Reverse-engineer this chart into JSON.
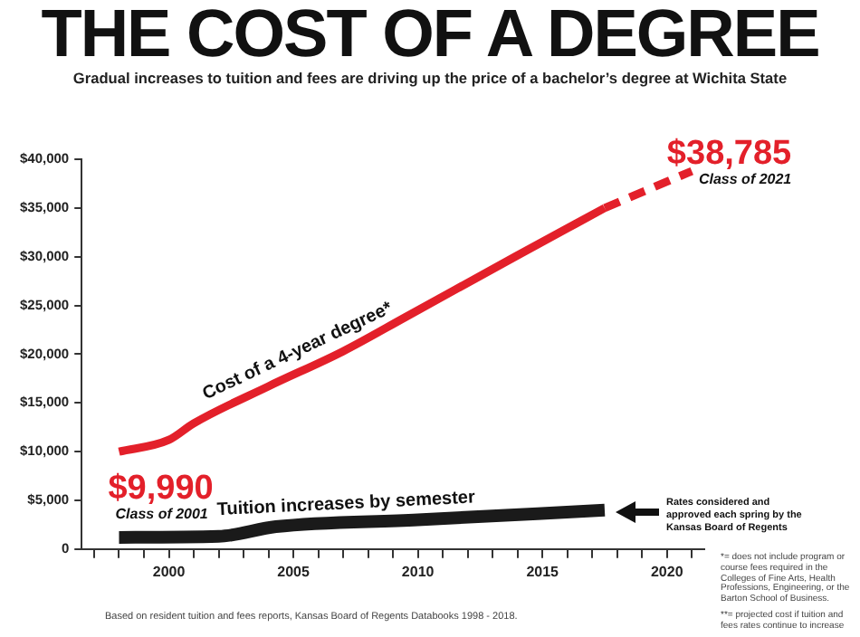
{
  "chart_data": {
    "type": "line",
    "title": "THE COST OF A DEGREE",
    "subtitle": "Gradual increases to tuition and fees are driving up the price of a bachelor’s degree at Wichita State",
    "series": [
      {
        "name": "Cost of a 4-year degree*",
        "color": "#e3202a",
        "x": [
          1998,
          2000,
          2001,
          2004,
          2007,
          2009.5,
          2013.9,
          2017.5
        ],
        "values": [
          9990,
          11200,
          12900,
          16700,
          20300,
          23800,
          30000,
          35000
        ]
      },
      {
        "color": "#e3202a",
        "line_style": "dashed",
        "x": [
          2017.5,
          2021
        ],
        "values": [
          35000,
          38785
        ]
      },
      {
        "name": "Tuition increases by semester",
        "color": "#1a1a1a",
        "x": [
          1998,
          2002,
          2004.3,
          2010,
          2017.5
        ],
        "values": [
          1200,
          1300,
          2300,
          3000,
          4000
        ]
      }
    ],
    "xlim": [
      1996.5,
      2021.5
    ],
    "xticks": [
      {
        "value": 1997,
        "label": null
      },
      {
        "value": 1998,
        "label": null
      },
      {
        "value": 1999,
        "label": null
      },
      2000,
      {
        "value": 2001,
        "label": null
      },
      {
        "value": 2002,
        "label": null
      },
      {
        "value": 2003,
        "label": null
      },
      {
        "value": 2004,
        "label": null
      },
      2005,
      {
        "value": 2006,
        "label": null
      },
      {
        "value": 2007,
        "label": null
      },
      {
        "value": 2008,
        "label": null
      },
      {
        "value": 2009,
        "label": null
      },
      2010,
      {
        "value": 2011,
        "label": null
      },
      {
        "value": 2012,
        "label": null
      },
      {
        "value": 2013,
        "label": null
      },
      {
        "value": 2014,
        "label": null
      },
      2015,
      {
        "value": 2016,
        "label": null
      },
      {
        "value": 2017,
        "label": null
      },
      {
        "value": 2018,
        "label": null
      },
      {
        "value": 2019,
        "label": null
      },
      2020,
      {
        "value": 2021,
        "label": null
      }
    ],
    "ylim": [
      0,
      40000
    ],
    "yticks": [
      0,
      {
        "value": 5000,
        "label": "$5,000"
      },
      {
        "value": 10000,
        "label": "$10,000"
      },
      {
        "value": 15000,
        "label": "$15,000"
      },
      {
        "value": 20000,
        "label": "$20,000"
      },
      {
        "value": 25000,
        "label": "$25,000"
      },
      {
        "value": 30000,
        "label": "$30,000"
      },
      {
        "value": 35000,
        "label": "$35,000"
      },
      {
        "value": 40000,
        "label": "$40,000"
      }
    ],
    "grid": false,
    "legend": false,
    "marker": "none",
    "line_style": "solid",
    "annotations": [
      {
        "text": "$9,990",
        "x": 1998,
        "y": 9990
      },
      "Class of 2001",
      {
        "text": "$38,785",
        "x": 2021,
        "y": 38785
      },
      "Class of 2021",
      "Rates considered and approved each spring by the Kansas Board of Regents",
      "Based on resident tuition and fees reports, Kansas Board of Regents Databooks 1998 - 2018.",
      "*= does not include program or course fees required in the Colleges of Fine Arts, Health Professions, Engineering, or the Barton School of Business.",
      "**= projected cost if tuition and fees rates continue to increase"
    ]
  }
}
